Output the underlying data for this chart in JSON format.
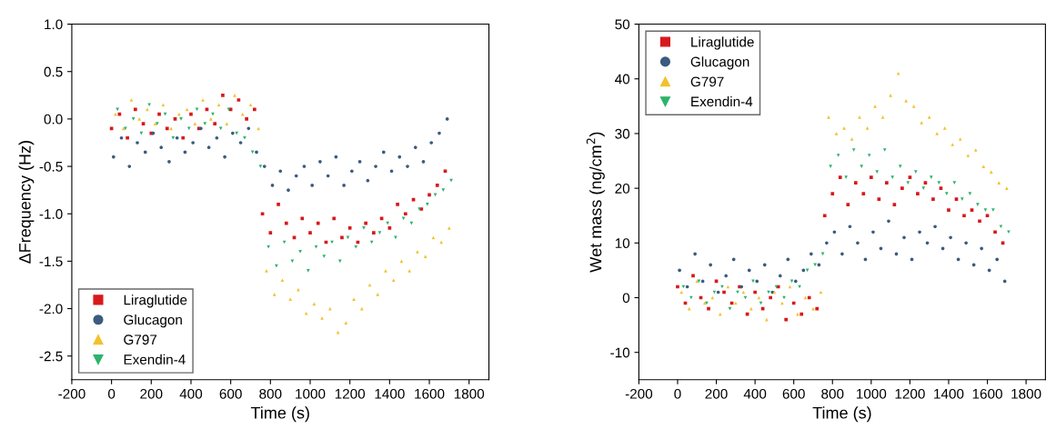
{
  "chart_data": [
    {
      "type": "scatter",
      "xlabel": "Time (s)",
      "ylabel": "ΔFrequency (Hz)",
      "xlim": [
        -200,
        1900
      ],
      "xticks": [
        -200,
        0,
        200,
        400,
        600,
        800,
        1000,
        1200,
        1400,
        1600,
        1800
      ],
      "ylim": [
        -2.75,
        1
      ],
      "yticks": [
        -2.5,
        {
          "value": -2,
          "label": "-2.0"
        },
        -1.5,
        {
          "value": -1,
          "label": "-1.0"
        },
        -0.5,
        {
          "value": 0,
          "label": "0.0"
        },
        0.5,
        {
          "value": 1,
          "label": "1.0"
        }
      ],
      "grid": false,
      "legend": "bottom left",
      "series": [
        {
          "name": "Liraglutide",
          "color": "#d7191c",
          "marker": "square",
          "x": [
            0,
            40,
            80,
            120,
            160,
            200,
            240,
            280,
            320,
            360,
            400,
            440,
            480,
            520,
            560,
            600,
            640,
            680,
            720,
            760,
            800,
            840,
            880,
            920,
            960,
            1000,
            1040,
            1080,
            1120,
            1160,
            1200,
            1240,
            1280,
            1320,
            1360,
            1400,
            1440,
            1480,
            1520,
            1560,
            1600,
            1640,
            1680
          ],
          "values": [
            -0.1,
            0.05,
            -0.2,
            0.1,
            -0.05,
            -0.15,
            0.05,
            -0.1,
            0.0,
            -0.2,
            0.05,
            -0.1,
            0.1,
            -0.05,
            0.25,
            0.1,
            0.2,
            0.0,
            0.1,
            -1.0,
            -1.2,
            -0.9,
            -1.1,
            -1.25,
            -1.05,
            -1.2,
            -1.1,
            -1.3,
            -1.05,
            -1.25,
            -1.15,
            -1.3,
            -1.1,
            -1.2,
            -1.05,
            -1.15,
            -0.9,
            -1.0,
            -0.85,
            -0.95,
            -0.8,
            -0.7,
            -0.55
          ]
        },
        {
          "name": "Glucagon",
          "color": "#3b5b80",
          "marker": "circle",
          "x": [
            10,
            50,
            90,
            130,
            170,
            210,
            250,
            290,
            330,
            370,
            410,
            450,
            490,
            530,
            570,
            610,
            650,
            690,
            730,
            770,
            810,
            850,
            890,
            930,
            970,
            1010,
            1050,
            1090,
            1130,
            1170,
            1210,
            1250,
            1290,
            1330,
            1370,
            1410,
            1450,
            1490,
            1530,
            1570,
            1610,
            1650,
            1690
          ],
          "values": [
            -0.4,
            -0.2,
            -0.5,
            -0.25,
            -0.35,
            -0.15,
            -0.3,
            -0.45,
            -0.2,
            -0.35,
            -0.25,
            -0.1,
            -0.3,
            -0.2,
            -0.4,
            -0.15,
            -0.25,
            -0.1,
            -0.35,
            -0.5,
            -0.7,
            -0.55,
            -0.75,
            -0.6,
            -0.5,
            -0.7,
            -0.45,
            -0.6,
            -0.4,
            -0.7,
            -0.55,
            -0.45,
            -0.65,
            -0.5,
            -0.35,
            -0.55,
            -0.4,
            -0.5,
            -0.3,
            -0.45,
            -0.25,
            -0.15,
            0.0
          ]
        },
        {
          "name": "G797",
          "color": "#f2c12e",
          "marker": "triangle",
          "x": [
            20,
            60,
            100,
            140,
            180,
            220,
            260,
            300,
            340,
            380,
            420,
            460,
            500,
            540,
            580,
            620,
            660,
            700,
            740,
            780,
            820,
            860,
            900,
            940,
            980,
            1020,
            1060,
            1100,
            1140,
            1180,
            1220,
            1260,
            1300,
            1340,
            1380,
            1420,
            1460,
            1500,
            1540,
            1580,
            1620,
            1660,
            1700
          ],
          "values": [
            0.05,
            -0.1,
            0.2,
            0.0,
            0.1,
            -0.05,
            0.15,
            -0.1,
            0.05,
            0.1,
            -0.05,
            0.2,
            0.0,
            0.15,
            -0.05,
            0.25,
            0.05,
            0.15,
            -0.1,
            -1.6,
            -1.85,
            -1.7,
            -1.9,
            -1.8,
            -2.05,
            -1.95,
            -2.1,
            -2.0,
            -2.25,
            -2.15,
            -1.9,
            -2.0,
            -1.75,
            -1.85,
            -1.6,
            -1.7,
            -1.5,
            -1.6,
            -1.4,
            -1.45,
            -1.25,
            -1.3,
            -1.15
          ]
        },
        {
          "name": "Exendin-4",
          "color": "#2eb36b",
          "marker": "triangle_down",
          "x": [
            30,
            70,
            110,
            150,
            190,
            230,
            270,
            310,
            350,
            390,
            430,
            470,
            510,
            550,
            590,
            630,
            670,
            710,
            750,
            790,
            830,
            870,
            910,
            950,
            990,
            1030,
            1070,
            1110,
            1150,
            1190,
            1230,
            1270,
            1310,
            1350,
            1390,
            1430,
            1470,
            1510,
            1550,
            1590,
            1630,
            1670,
            1710
          ],
          "values": [
            0.1,
            -0.1,
            0.0,
            -0.15,
            0.15,
            -0.05,
            0.05,
            -0.2,
            0.0,
            -0.1,
            0.1,
            -0.05,
            0.05,
            -0.1,
            0.1,
            -0.15,
            -0.2,
            -0.35,
            -0.5,
            -1.35,
            -1.55,
            -1.3,
            -1.5,
            -1.4,
            -1.6,
            -1.35,
            -1.45,
            -1.3,
            -1.5,
            -1.25,
            -1.35,
            -1.15,
            -1.3,
            -1.2,
            -1.1,
            -1.25,
            -1.05,
            -1.1,
            -0.95,
            -0.9,
            -0.8,
            -0.75,
            -0.65
          ]
        }
      ]
    },
    {
      "type": "scatter",
      "xlabel": "Time (s)",
      "ylabel": "Wet mass (ng/cm$^{2}$)",
      "xlim": [
        -200,
        1900
      ],
      "xticks": [
        -200,
        0,
        200,
        400,
        600,
        800,
        1000,
        1200,
        1400,
        1600,
        1800
      ],
      "ylim": [
        -15,
        50
      ],
      "yticks": [
        -10,
        0,
        10,
        20,
        30,
        40,
        50
      ],
      "grid": false,
      "legend": "top left",
      "series": [
        {
          "name": "Liraglutide",
          "color": "#d7191c",
          "marker": "square",
          "x": [
            0,
            40,
            80,
            120,
            160,
            200,
            240,
            280,
            320,
            360,
            400,
            440,
            480,
            520,
            560,
            600,
            640,
            680,
            720,
            760,
            800,
            840,
            880,
            920,
            960,
            1000,
            1040,
            1080,
            1120,
            1160,
            1200,
            1240,
            1280,
            1320,
            1360,
            1400,
            1440,
            1480,
            1520,
            1560,
            1600,
            1640,
            1680
          ],
          "values": [
            2,
            -1,
            4,
            0,
            -2,
            3,
            1,
            -1,
            2,
            -3,
            1,
            -2,
            0,
            2,
            -4,
            -1,
            -3,
            0,
            -2,
            15,
            19,
            22,
            17,
            21,
            19,
            22,
            18,
            21,
            17,
            20,
            22,
            19,
            21,
            18,
            20,
            16,
            18,
            15,
            16,
            14,
            15,
            12,
            10
          ]
        },
        {
          "name": "Glucagon",
          "color": "#3b5b80",
          "marker": "circle",
          "x": [
            10,
            50,
            90,
            130,
            170,
            210,
            250,
            290,
            330,
            370,
            410,
            450,
            490,
            530,
            570,
            610,
            650,
            690,
            730,
            770,
            810,
            850,
            890,
            930,
            970,
            1010,
            1050,
            1090,
            1130,
            1170,
            1210,
            1250,
            1290,
            1330,
            1370,
            1410,
            1450,
            1490,
            1530,
            1570,
            1610,
            1650,
            1690
          ],
          "values": [
            5,
            2,
            8,
            3,
            6,
            1,
            4,
            7,
            2,
            5,
            3,
            6,
            1,
            4,
            7,
            3,
            5,
            8,
            6,
            10,
            12,
            8,
            13,
            10,
            7,
            12,
            9,
            14,
            8,
            11,
            7,
            12,
            10,
            13,
            9,
            11,
            7,
            10,
            6,
            9,
            5,
            7,
            3
          ]
        },
        {
          "name": "G797",
          "color": "#f2c12e",
          "marker": "triangle",
          "x": [
            20,
            60,
            100,
            140,
            180,
            220,
            260,
            300,
            340,
            380,
            420,
            460,
            500,
            540,
            580,
            620,
            660,
            700,
            740,
            780,
            820,
            860,
            900,
            940,
            980,
            1020,
            1060,
            1100,
            1140,
            1180,
            1220,
            1260,
            1300,
            1340,
            1380,
            1420,
            1460,
            1500,
            1540,
            1580,
            1620,
            1660,
            1700
          ],
          "values": [
            1,
            -2,
            3,
            -1,
            0,
            -3,
            2,
            -1,
            1,
            -2,
            0,
            -4,
            1,
            -1,
            2,
            -3,
            0,
            -2,
            1,
            33,
            30,
            31,
            29,
            33,
            31,
            35,
            33,
            37,
            41,
            36,
            35,
            32,
            33,
            30,
            31,
            28,
            29,
            26,
            27,
            24,
            23,
            21,
            20
          ]
        },
        {
          "name": "Exendin-4",
          "color": "#2eb36b",
          "marker": "triangle_down",
          "x": [
            30,
            70,
            110,
            150,
            190,
            230,
            270,
            310,
            350,
            390,
            430,
            470,
            510,
            550,
            590,
            630,
            670,
            710,
            750,
            790,
            830,
            870,
            910,
            950,
            990,
            1030,
            1070,
            1110,
            1150,
            1190,
            1230,
            1270,
            1310,
            1350,
            1390,
            1430,
            1470,
            1510,
            1550,
            1590,
            1630,
            1670,
            1710
          ],
          "values": [
            2,
            0,
            3,
            -1,
            1,
            2,
            -2,
            1,
            0,
            3,
            -1,
            1,
            2,
            0,
            3,
            2,
            5,
            6,
            8,
            24,
            26,
            22,
            27,
            24,
            26,
            23,
            27,
            22,
            24,
            21,
            23,
            20,
            22,
            21,
            19,
            21,
            18,
            19,
            17,
            16,
            16,
            13,
            12
          ]
        }
      ]
    }
  ]
}
